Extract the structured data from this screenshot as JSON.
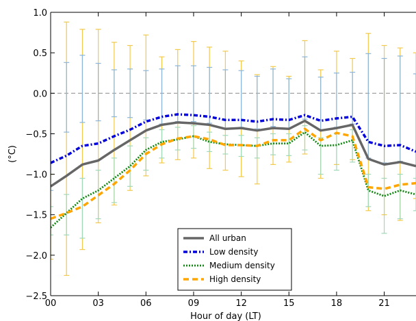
{
  "chart_data": {
    "type": "line",
    "title": "",
    "xlabel": "Hour of day (LT)",
    "ylabel": "(°C)",
    "xlim": [
      0,
      23
    ],
    "ylim": [
      -2.5,
      1.0
    ],
    "xticks": [
      0,
      3,
      6,
      9,
      12,
      15,
      18,
      21
    ],
    "xtick_labels": [
      "00",
      "03",
      "06",
      "09",
      "12",
      "15",
      "18",
      "21"
    ],
    "yticks": [
      -2.5,
      -2.0,
      -1.5,
      -1.0,
      -0.5,
      0.0,
      0.5,
      1.0
    ],
    "ytick_labels": [
      "−2.5",
      "−2.0",
      "−1.5",
      "−1.0",
      "−0.5",
      "0.0",
      "0.5",
      "1.0"
    ],
    "reference_line": {
      "y": 0.0,
      "style": "dashed",
      "color": "#888888"
    },
    "legend_position": "lower-center",
    "x": [
      0,
      1,
      2,
      3,
      4,
      5,
      6,
      7,
      8,
      9,
      10,
      11,
      12,
      13,
      14,
      15,
      16,
      17,
      18,
      19,
      20,
      21,
      22,
      23
    ],
    "series": [
      {
        "name": "All urban",
        "color": "#666666",
        "style": "solid",
        "values": [
          -1.15,
          -1.02,
          -0.88,
          -0.83,
          -0.7,
          -0.58,
          -0.46,
          -0.39,
          -0.36,
          -0.37,
          -0.39,
          -0.44,
          -0.43,
          -0.46,
          -0.43,
          -0.44,
          -0.34,
          -0.46,
          -0.43,
          -0.39,
          -0.81,
          -0.88,
          -0.85,
          -0.9
        ]
      },
      {
        "name": "Low density",
        "color": "#0000dd",
        "style": "dashdot",
        "values": [
          -0.86,
          -0.77,
          -0.65,
          -0.62,
          -0.53,
          -0.45,
          -0.35,
          -0.29,
          -0.26,
          -0.27,
          -0.29,
          -0.33,
          -0.33,
          -0.35,
          -0.32,
          -0.33,
          -0.27,
          -0.34,
          -0.31,
          -0.29,
          -0.6,
          -0.65,
          -0.64,
          -0.72
        ]
      },
      {
        "name": "Medium density",
        "color": "#118811",
        "style": "dotted",
        "values": [
          -1.66,
          -1.48,
          -1.3,
          -1.2,
          -1.05,
          -0.9,
          -0.7,
          -0.6,
          -0.57,
          -0.53,
          -0.6,
          -0.63,
          -0.64,
          -0.65,
          -0.62,
          -0.62,
          -0.48,
          -0.65,
          -0.64,
          -0.58,
          -1.2,
          -1.27,
          -1.2,
          -1.25
        ]
      },
      {
        "name": "High density",
        "color": "#ffa500",
        "style": "dashed",
        "values": [
          -1.55,
          -1.48,
          -1.4,
          -1.26,
          -1.12,
          -0.95,
          -0.75,
          -0.63,
          -0.56,
          -0.53,
          -0.57,
          -0.64,
          -0.64,
          -0.65,
          -0.58,
          -0.58,
          -0.44,
          -0.58,
          -0.49,
          -0.53,
          -1.16,
          -1.18,
          -1.13,
          -1.11
        ]
      }
    ],
    "error_bars": [
      {
        "name": "High density",
        "color": "#f2c94c",
        "low": [
          -2.05,
          -2.25,
          -1.93,
          -1.6,
          -1.38,
          -1.2,
          -1.02,
          -0.86,
          -0.82,
          -0.8,
          -0.93,
          -0.95,
          -1.03,
          -1.12,
          -0.88,
          -0.85,
          -0.75,
          -1.05,
          -0.88,
          -0.82,
          -1.45,
          -1.5,
          -1.57,
          -1.3
        ],
        "high": [
          -1.0,
          0.88,
          0.79,
          0.79,
          0.63,
          0.59,
          0.72,
          0.45,
          0.54,
          0.64,
          0.57,
          0.52,
          0.4,
          0.23,
          0.33,
          0.21,
          0.65,
          0.29,
          0.52,
          0.43,
          0.74,
          0.59,
          0.56,
          0.5
        ]
      },
      {
        "name": "Low density",
        "color": "#8ab4d8",
        "low": [
          -1.2,
          -0.48,
          -0.36,
          -0.34,
          -0.29,
          -0.3,
          -0.33,
          -0.38,
          -0.35,
          -0.35,
          -0.37,
          -0.43,
          -0.42,
          -0.44,
          -0.41,
          -0.43,
          -0.32,
          -0.45,
          -0.42,
          -0.38,
          -0.8,
          -0.86,
          -0.84,
          -0.9
        ],
        "high": [
          -0.5,
          0.38,
          0.47,
          0.37,
          0.29,
          0.3,
          0.28,
          0.3,
          0.34,
          0.34,
          0.32,
          0.29,
          0.28,
          0.21,
          0.3,
          0.18,
          0.45,
          0.2,
          0.25,
          0.26,
          0.49,
          0.43,
          0.46,
          0.24
        ]
      },
      {
        "name": "Medium density",
        "color": "#a0d8b8",
        "low": [
          -1.75,
          -1.75,
          -1.79,
          -1.55,
          -1.35,
          -1.15,
          -0.95,
          -0.8,
          -0.7,
          -0.68,
          -0.72,
          -0.75,
          -0.78,
          -0.8,
          -0.76,
          -0.77,
          -0.7,
          -1.0,
          -0.95,
          -0.85,
          -1.4,
          -1.73,
          -1.55,
          -1.45
        ],
        "high": [
          -1.4,
          -1.25,
          -1.05,
          -0.95,
          -0.8,
          -0.65,
          -0.55,
          -0.45,
          -0.42,
          -0.4,
          -0.48,
          -0.52,
          -0.52,
          -0.55,
          -0.5,
          -0.5,
          -0.4,
          -0.55,
          -0.5,
          -0.45,
          -1.0,
          -1.05,
          -1.0,
          -1.05
        ]
      }
    ]
  }
}
